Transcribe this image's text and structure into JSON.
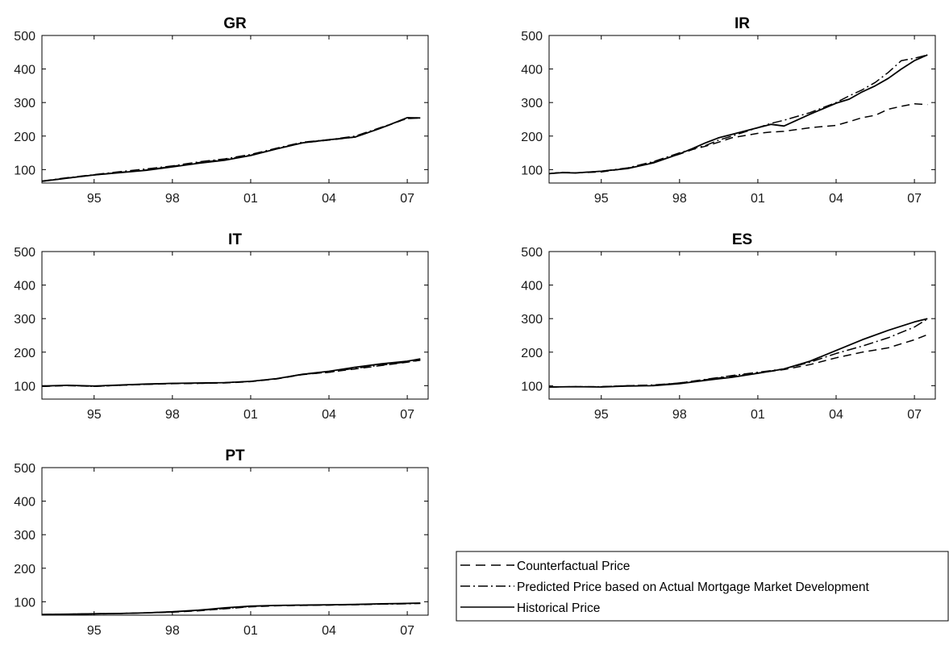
{
  "chart_data": [
    {
      "type": "line",
      "title": "GR",
      "xlabel": "",
      "ylabel": "",
      "xlim": [
        1993.0,
        2007.8
      ],
      "ylim": [
        60,
        500
      ],
      "x_ticks": [
        1995,
        1998,
        2001,
        2004,
        2007
      ],
      "x_tick_labels": [
        "95",
        "98",
        "01",
        "04",
        "07"
      ],
      "y_ticks": [
        100,
        200,
        300,
        400,
        500
      ],
      "y_tick_labels": [
        "100",
        "200",
        "300",
        "400",
        "500"
      ],
      "x": [
        1993.0,
        1994.0,
        1995.0,
        1996.0,
        1997.0,
        1998.0,
        1999.0,
        2000.0,
        2001.0,
        2002.0,
        2003.0,
        2004.0,
        2005.0,
        2006.0,
        2007.0,
        2007.5
      ],
      "series": [
        {
          "name": "Counterfactual Price",
          "style": "dashed",
          "values": [
            65,
            75,
            84,
            92,
            99,
            110,
            121,
            130,
            143,
            162,
            180,
            188,
            197,
            224,
            253,
            255
          ]
        },
        {
          "name": "Predicted Price based on Actual Mortgage Market Development",
          "style": "dashdot",
          "values": [
            66,
            76,
            85,
            94,
            102,
            111,
            123,
            132,
            145,
            164,
            182,
            189,
            200,
            226,
            252,
            254
          ]
        },
        {
          "name": "Historical Price",
          "style": "solid",
          "values": [
            65,
            75,
            84,
            91,
            98,
            108,
            119,
            128,
            142,
            162,
            180,
            189,
            197,
            224,
            255,
            254
          ]
        }
      ]
    },
    {
      "type": "line",
      "title": "IR",
      "xlabel": "",
      "ylabel": "",
      "xlim": [
        1993.0,
        2007.8
      ],
      "ylim": [
        60,
        500
      ],
      "x_ticks": [
        1995,
        1998,
        2001,
        2004,
        2007
      ],
      "x_tick_labels": [
        "95",
        "98",
        "01",
        "04",
        "07"
      ],
      "y_ticks": [
        100,
        200,
        300,
        400,
        500
      ],
      "y_tick_labels": [
        "100",
        "200",
        "300",
        "400",
        "500"
      ],
      "x": [
        1993.0,
        1993.5,
        1994.0,
        1995.0,
        1996.0,
        1997.0,
        1998.0,
        1998.5,
        1999.0,
        1999.5,
        2000.0,
        2001.0,
        2001.5,
        2002.0,
        2003.0,
        2004.0,
        2004.5,
        2005.0,
        2005.5,
        2006.0,
        2006.5,
        2007.0,
        2007.5
      ],
      "series": [
        {
          "name": "Counterfactual Price",
          "style": "dashed",
          "values": [
            88,
            92,
            90,
            93,
            104,
            122,
            146,
            160,
            170,
            182,
            195,
            208,
            212,
            214,
            225,
            232,
            243,
            255,
            262,
            280,
            289,
            296,
            294
          ]
        },
        {
          "name": "Predicted Price based on Actual Mortgage Market Development",
          "style": "dashdot",
          "values": [
            88,
            92,
            90,
            95,
            105,
            124,
            150,
            162,
            172,
            188,
            200,
            225,
            238,
            247,
            270,
            300,
            320,
            338,
            360,
            390,
            425,
            432,
            442
          ]
        },
        {
          "name": "Historical Price",
          "style": "solid",
          "values": [
            88,
            91,
            90,
            95,
            103,
            120,
            147,
            163,
            180,
            195,
            205,
            225,
            235,
            230,
            265,
            298,
            310,
            332,
            350,
            372,
            400,
            425,
            442
          ]
        }
      ]
    },
    {
      "type": "line",
      "title": "IT",
      "xlabel": "",
      "ylabel": "",
      "xlim": [
        1993.0,
        2007.8
      ],
      "ylim": [
        60,
        500
      ],
      "x_ticks": [
        1995,
        1998,
        2001,
        2004,
        2007
      ],
      "x_tick_labels": [
        "95",
        "98",
        "01",
        "04",
        "07"
      ],
      "y_ticks": [
        100,
        200,
        300,
        400,
        500
      ],
      "y_tick_labels": [
        "100",
        "200",
        "300",
        "400",
        "500"
      ],
      "x": [
        1993.0,
        1994.0,
        1995.0,
        1996.0,
        1997.0,
        1998.0,
        1999.0,
        2000.0,
        2001.0,
        2002.0,
        2003.0,
        2004.0,
        2005.0,
        2006.0,
        2007.0,
        2007.5
      ],
      "series": [
        {
          "name": "Counterfactual Price",
          "style": "dashed",
          "values": [
            98,
            100,
            98,
            101,
            104,
            106,
            107,
            108,
            112,
            120,
            133,
            140,
            150,
            160,
            170,
            176
          ]
        },
        {
          "name": "Predicted Price based on Actual Mortgage Market Development",
          "style": "dashdot",
          "values": [
            98,
            101,
            98,
            101,
            104,
            107,
            107,
            109,
            113,
            121,
            134,
            140,
            152,
            161,
            171,
            176
          ]
        },
        {
          "name": "Historical Price",
          "style": "solid",
          "values": [
            99,
            101,
            99,
            102,
            105,
            107,
            108,
            109,
            113,
            121,
            134,
            143,
            155,
            165,
            173,
            180
          ]
        }
      ]
    },
    {
      "type": "line",
      "title": "ES",
      "xlabel": "",
      "ylabel": "",
      "xlim": [
        1993.0,
        2007.8
      ],
      "ylim": [
        60,
        500
      ],
      "x_ticks": [
        1995,
        1998,
        2001,
        2004,
        2007
      ],
      "x_tick_labels": [
        "95",
        "98",
        "01",
        "04",
        "07"
      ],
      "y_ticks": [
        100,
        200,
        300,
        400,
        500
      ],
      "y_tick_labels": [
        "100",
        "200",
        "300",
        "400",
        "500"
      ],
      "x": [
        1993.0,
        1994.0,
        1995.0,
        1996.0,
        1997.0,
        1998.0,
        1999.0,
        2000.0,
        2001.0,
        2002.0,
        2003.0,
        2004.0,
        2005.0,
        2006.0,
        2007.0,
        2007.5
      ],
      "series": [
        {
          "name": "Counterfactual Price",
          "style": "dashed",
          "values": [
            96,
            97,
            97,
            100,
            101,
            108,
            118,
            128,
            138,
            148,
            163,
            183,
            200,
            213,
            237,
            252
          ]
        },
        {
          "name": "Predicted Price based on Actual Mortgage Market Development",
          "style": "dashdot",
          "values": [
            96,
            97,
            97,
            100,
            102,
            108,
            119,
            130,
            140,
            150,
            170,
            196,
            218,
            243,
            275,
            299
          ]
        },
        {
          "name": "Historical Price",
          "style": "solid",
          "values": [
            96,
            97,
            96,
            99,
            100,
            106,
            116,
            125,
            137,
            150,
            173,
            205,
            237,
            265,
            290,
            300
          ]
        }
      ]
    },
    {
      "type": "line",
      "title": "PT",
      "xlabel": "",
      "ylabel": "",
      "xlim": [
        1993.0,
        2007.8
      ],
      "ylim": [
        60,
        500
      ],
      "x_ticks": [
        1995,
        1998,
        2001,
        2004,
        2007
      ],
      "x_tick_labels": [
        "95",
        "98",
        "01",
        "04",
        "07"
      ],
      "y_ticks": [
        100,
        200,
        300,
        400,
        500
      ],
      "y_tick_labels": [
        "100",
        "200",
        "300",
        "400",
        "500"
      ],
      "x": [
        1993.0,
        1994.0,
        1995.0,
        1996.0,
        1997.0,
        1998.0,
        1999.0,
        2000.0,
        2001.0,
        2002.0,
        2003.0,
        2004.0,
        2005.0,
        2006.0,
        2007.0,
        2007.5
      ],
      "series": [
        {
          "name": "Counterfactual Price",
          "style": "dashed",
          "values": [
            62,
            63,
            64,
            65,
            67,
            69,
            73,
            79,
            85,
            88,
            89,
            90,
            91,
            93,
            95,
            95
          ]
        },
        {
          "name": "Predicted Price based on Actual Mortgage Market Development",
          "style": "dashdot",
          "values": [
            62,
            63,
            64,
            65,
            67,
            70,
            74,
            80,
            86,
            89,
            90,
            90,
            92,
            93,
            94,
            95
          ]
        },
        {
          "name": "Historical Price",
          "style": "solid",
          "values": [
            62,
            63,
            64,
            65,
            67,
            70,
            75,
            82,
            87,
            89,
            90,
            91,
            92,
            94,
            95,
            96
          ]
        }
      ]
    }
  ],
  "legend": {
    "entries": [
      {
        "label": "Counterfactual Price",
        "style": "dashed"
      },
      {
        "label": "Predicted Price based on Actual Mortgage Market Development",
        "style": "dashdot"
      },
      {
        "label": "Historical Price",
        "style": "solid"
      }
    ]
  }
}
